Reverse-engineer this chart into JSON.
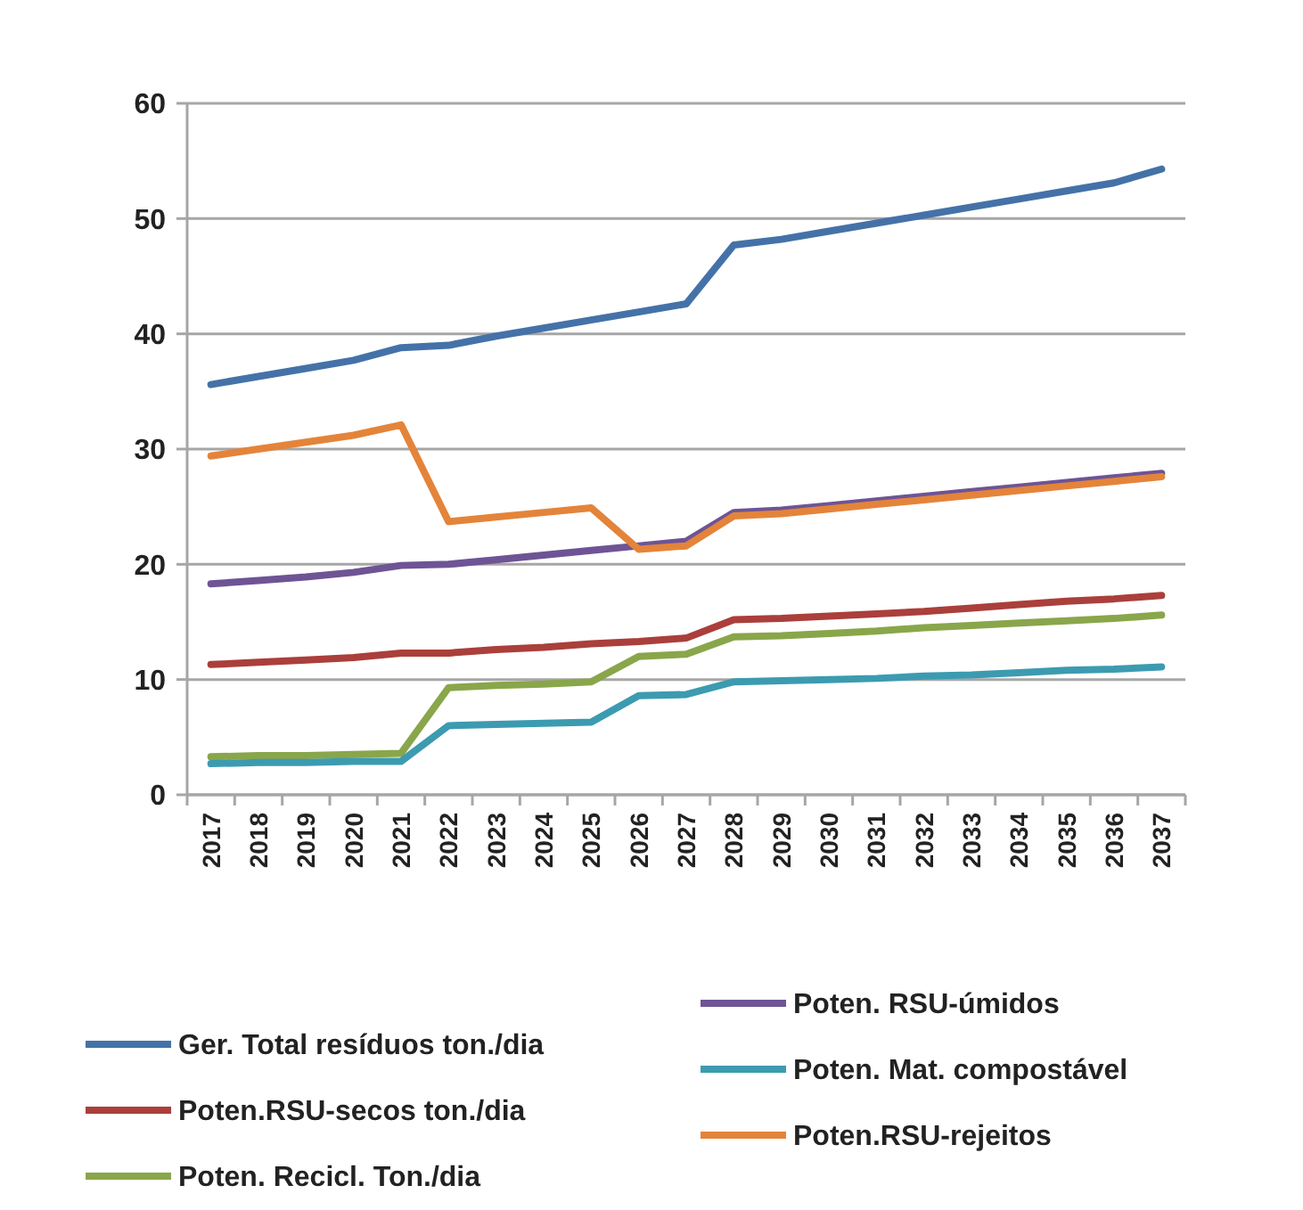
{
  "chart_data": {
    "type": "line",
    "categories": [
      "2017",
      "2018",
      "2019",
      "2020",
      "2021",
      "2022",
      "2023",
      "2024",
      "2025",
      "2026",
      "2027",
      "2028",
      "2029",
      "2030",
      "2031",
      "2032",
      "2033",
      "2034",
      "2035",
      "2036",
      "2037"
    ],
    "series": [
      {
        "name": "Ger. Total resíduos ton./dia",
        "color": "#4472a8",
        "values": [
          35.6,
          36.3,
          37.0,
          37.7,
          38.8,
          39.0,
          39.8,
          40.5,
          41.2,
          41.9,
          42.6,
          47.7,
          48.2,
          48.9,
          49.6,
          50.3,
          51.0,
          51.7,
          52.4,
          53.1,
          54.3
        ]
      },
      {
        "name": "Poten.RSU-secos ton./dia",
        "color": "#aa3f3b",
        "values": [
          11.3,
          11.5,
          11.7,
          11.9,
          12.3,
          12.3,
          12.6,
          12.8,
          13.1,
          13.3,
          13.6,
          15.2,
          15.3,
          15.5,
          15.7,
          15.9,
          16.2,
          16.5,
          16.8,
          17.0,
          17.3
        ]
      },
      {
        "name": "Poten. Recicl. Ton./dia",
        "color": "#89a64a",
        "values": [
          3.3,
          3.4,
          3.4,
          3.5,
          3.6,
          9.3,
          9.5,
          9.6,
          9.8,
          12.0,
          12.2,
          13.7,
          13.8,
          14.0,
          14.2,
          14.5,
          14.7,
          14.9,
          15.1,
          15.3,
          15.6
        ]
      },
      {
        "name": "Poten. RSU-úmidos",
        "color": "#6e5495",
        "values": [
          18.3,
          18.6,
          18.9,
          19.3,
          19.9,
          20.0,
          20.4,
          20.8,
          21.2,
          21.6,
          22.0,
          24.5,
          24.7,
          25.1,
          25.5,
          25.9,
          26.3,
          26.7,
          27.1,
          27.5,
          27.9
        ]
      },
      {
        "name": "Poten. Mat. compostável",
        "color": "#3c9bb0",
        "values": [
          2.7,
          2.8,
          2.8,
          2.9,
          2.9,
          6.0,
          6.1,
          6.2,
          6.3,
          8.6,
          8.7,
          9.8,
          9.9,
          10.0,
          10.1,
          10.3,
          10.4,
          10.6,
          10.8,
          10.9,
          11.1
        ]
      },
      {
        "name": "Poten.RSU-rejeitos",
        "color": "#e4843a",
        "values": [
          29.4,
          30.0,
          30.6,
          31.2,
          32.1,
          23.7,
          24.1,
          24.5,
          24.9,
          21.3,
          21.6,
          24.2,
          24.4,
          24.8,
          25.2,
          25.6,
          26.0,
          26.4,
          26.8,
          27.2,
          27.6
        ]
      }
    ],
    "ylim": [
      0,
      60
    ],
    "yticks": [
      0,
      10,
      20,
      30,
      40,
      50,
      60
    ],
    "grid": "y",
    "legend": "bottom",
    "marker": "none",
    "line_style": "solid"
  }
}
